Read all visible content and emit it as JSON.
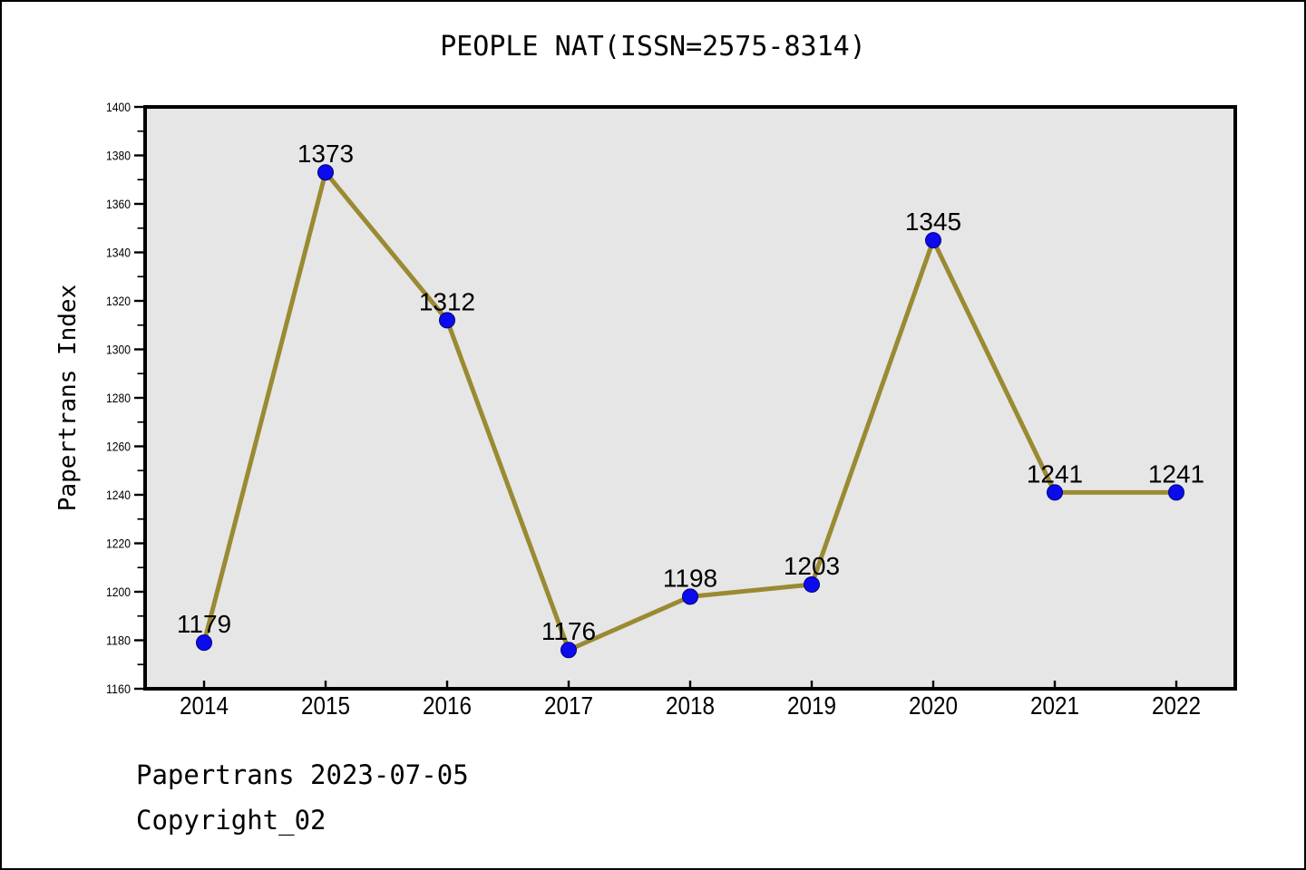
{
  "figure": {
    "background": "#ffffff",
    "border_color": "#000000"
  },
  "chart_data": {
    "type": "line",
    "title": "PEOPLE NAT(ISSN=2575-8314)",
    "xlabel": "",
    "ylabel": "Papertrans Index",
    "categories": [
      "2014",
      "2015",
      "2016",
      "2017",
      "2018",
      "2019",
      "2020",
      "2021",
      "2022"
    ],
    "series": [
      {
        "name": "Papertrans Index",
        "values": [
          1179,
          1373,
          1312,
          1176,
          1198,
          1203,
          1345,
          1241,
          1241
        ]
      }
    ],
    "point_labels": [
      "1179",
      "1373",
      "1312",
      "1176",
      "1198",
      "1203",
      "1345",
      "1241",
      "1241"
    ],
    "ylim": [
      1160,
      1400
    ],
    "ytick_major_step": 20,
    "ytick_minor_step": 10,
    "grid": false,
    "legend_position": "none",
    "line_color": "#9A8A32",
    "marker_color": "#0B0BEE",
    "marker_edge_color": "#00007A",
    "plot_background": "#E6E6E6",
    "axis_color": "#000000",
    "tick_label_color": "#000000"
  },
  "footer": {
    "line1": "Papertrans 2023-07-05",
    "line2": "Copyright_02"
  }
}
